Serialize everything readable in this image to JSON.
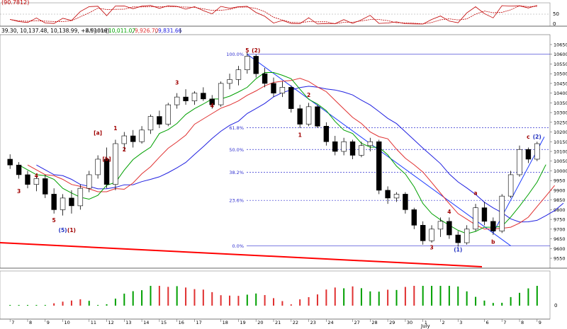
{
  "oscillator": {
    "header": "(90.7812)",
    "levels": [
      50,
      0
    ],
    "level_labels": [
      "50",
      "0"
    ]
  },
  "price_header": {
    "ohlc_text": "39.30, 10,137.48, 10,138.99, +8.91016)",
    "ma_label": "Alligator",
    "ma_values": [
      "10,011.07",
      "9,926.70",
      "9,831.66"
    ]
  },
  "volume": {
    "level_label": "0"
  },
  "colors": {
    "up_bar": "#ffffff",
    "down_bar": "#000000",
    "ma_green": "#00a000",
    "ma_red": "#e03030",
    "ma_blue": "#2020e0",
    "fib": "#3030d0",
    "trendline_red": "#ff0000",
    "trend_blue": "#1e3cff",
    "label_red": "#a00000",
    "label_blue": "#2030c0"
  },
  "chart_data": {
    "type": "candlestick",
    "ylim": [
      9510,
      10690
    ],
    "y_ticks": [
      9550,
      9600,
      9650,
      9700,
      9750,
      9800,
      9850,
      9900,
      9950,
      10000,
      10050,
      10100,
      10150,
      10200,
      10250,
      10300,
      10350,
      10400,
      10450,
      10500,
      10550,
      10600,
      10650
    ],
    "x_tick_labels": [
      "7",
      "8",
      "9",
      "10",
      "11",
      "12",
      "13",
      "14",
      "15",
      "16",
      "17",
      "18",
      "19",
      "20",
      "21",
      "22",
      "23",
      "24",
      "27",
      "28",
      "29",
      "30",
      "1",
      "2",
      "3",
      "6",
      "7",
      "8",
      "9"
    ],
    "x_month_label": "July",
    "fib_levels": [
      {
        "label": "100.0%",
        "value": 10600
      },
      {
        "label": "61.8%",
        "value": 10222
      },
      {
        "label": "50.0%",
        "value": 10110
      },
      {
        "label": "38.2%",
        "value": 9993
      },
      {
        "label": "23.6%",
        "value": 9848
      },
      {
        "label": "0.0%",
        "value": 9614
      }
    ],
    "wave_labels": [
      {
        "text": "3",
        "x": 1,
        "y": 9885
      },
      {
        "text": "4",
        "x": 3,
        "y": 9965
      },
      {
        "text": "5",
        "x": 5,
        "y": 9735
      },
      {
        "text": "(5)",
        "x": 6,
        "y": 9685
      },
      {
        "text": "(1)",
        "x": 7,
        "y": 9685
      },
      {
        "text": "[a]",
        "x": 10,
        "y": 10186
      },
      {
        "text": "[b]",
        "x": 11,
        "y": 10050
      },
      {
        "text": "1",
        "x": 12,
        "y": 10210
      },
      {
        "text": "2",
        "x": 13,
        "y": 10100
      },
      {
        "text": "3",
        "x": 19,
        "y": 10445
      },
      {
        "text": "4",
        "x": 23,
        "y": 10325
      },
      {
        "text": "5",
        "x": 27,
        "y": 10610
      },
      {
        "text": "(2)",
        "x": 28,
        "y": 10610
      },
      {
        "text": "2",
        "x": 34,
        "y": 10380
      },
      {
        "text": "1",
        "x": 33,
        "y": 10175
      },
      {
        "text": "3",
        "x": 48,
        "y": 9595
      },
      {
        "text": "4",
        "x": 50,
        "y": 9780
      },
      {
        "text": "(1)",
        "x": 51,
        "y": 9585
      },
      {
        "text": "a",
        "x": 53,
        "y": 9876
      },
      {
        "text": "b",
        "x": 55,
        "y": 9625
      },
      {
        "text": "c",
        "x": 59,
        "y": 10165
      },
      {
        "text": "(2)",
        "x": 60,
        "y": 10165
      }
    ],
    "candles": [
      {
        "o": 10060,
        "h": 10085,
        "l": 10010,
        "c": 10030
      },
      {
        "o": 10030,
        "h": 10045,
        "l": 9960,
        "c": 9980
      },
      {
        "o": 9980,
        "h": 10000,
        "l": 9910,
        "c": 9930
      },
      {
        "o": 9930,
        "h": 9975,
        "l": 9895,
        "c": 9960
      },
      {
        "o": 9960,
        "h": 9980,
        "l": 9860,
        "c": 9880
      },
      {
        "o": 9880,
        "h": 9910,
        "l": 9780,
        "c": 9800
      },
      {
        "o": 9800,
        "h": 9880,
        "l": 9770,
        "c": 9860
      },
      {
        "o": 9860,
        "h": 9900,
        "l": 9780,
        "c": 9820
      },
      {
        "o": 9820,
        "h": 9930,
        "l": 9800,
        "c": 9910
      },
      {
        "o": 9910,
        "h": 10000,
        "l": 9890,
        "c": 9980
      },
      {
        "o": 9980,
        "h": 10080,
        "l": 9960,
        "c": 10060
      },
      {
        "o": 10060,
        "h": 10120,
        "l": 9910,
        "c": 9930
      },
      {
        "o": 9930,
        "h": 10160,
        "l": 9900,
        "c": 10140
      },
      {
        "o": 10140,
        "h": 10200,
        "l": 10100,
        "c": 10180
      },
      {
        "o": 10180,
        "h": 10210,
        "l": 10120,
        "c": 10150
      },
      {
        "o": 10150,
        "h": 10230,
        "l": 10140,
        "c": 10210
      },
      {
        "o": 10210,
        "h": 10290,
        "l": 10190,
        "c": 10280
      },
      {
        "o": 10280,
        "h": 10310,
        "l": 10220,
        "c": 10240
      },
      {
        "o": 10240,
        "h": 10350,
        "l": 10230,
        "c": 10340
      },
      {
        "o": 10340,
        "h": 10400,
        "l": 10320,
        "c": 10380
      },
      {
        "o": 10380,
        "h": 10420,
        "l": 10340,
        "c": 10360
      },
      {
        "o": 10360,
        "h": 10410,
        "l": 10340,
        "c": 10400
      },
      {
        "o": 10400,
        "h": 10430,
        "l": 10360,
        "c": 10370
      },
      {
        "o": 10370,
        "h": 10390,
        "l": 10320,
        "c": 10340
      },
      {
        "o": 10340,
        "h": 10460,
        "l": 10330,
        "c": 10450
      },
      {
        "o": 10450,
        "h": 10500,
        "l": 10420,
        "c": 10470
      },
      {
        "o": 10470,
        "h": 10540,
        "l": 10440,
        "c": 10520
      },
      {
        "o": 10520,
        "h": 10610,
        "l": 10500,
        "c": 10590
      },
      {
        "o": 10590,
        "h": 10600,
        "l": 10480,
        "c": 10500
      },
      {
        "o": 10500,
        "h": 10530,
        "l": 10430,
        "c": 10450
      },
      {
        "o": 10450,
        "h": 10480,
        "l": 10380,
        "c": 10400
      },
      {
        "o": 10400,
        "h": 10460,
        "l": 10380,
        "c": 10430
      },
      {
        "o": 10430,
        "h": 10440,
        "l": 10300,
        "c": 10320
      },
      {
        "o": 10320,
        "h": 10340,
        "l": 10220,
        "c": 10240
      },
      {
        "o": 10240,
        "h": 10350,
        "l": 10230,
        "c": 10330
      },
      {
        "o": 10330,
        "h": 10340,
        "l": 10220,
        "c": 10230
      },
      {
        "o": 10230,
        "h": 10250,
        "l": 10130,
        "c": 10150
      },
      {
        "o": 10150,
        "h": 10180,
        "l": 10080,
        "c": 10100
      },
      {
        "o": 10100,
        "h": 10170,
        "l": 10080,
        "c": 10150
      },
      {
        "o": 10150,
        "h": 10160,
        "l": 10060,
        "c": 10080
      },
      {
        "o": 10080,
        "h": 10150,
        "l": 10070,
        "c": 10130
      },
      {
        "o": 10130,
        "h": 10170,
        "l": 10100,
        "c": 10150
      },
      {
        "o": 10150,
        "h": 10160,
        "l": 9880,
        "c": 9900
      },
      {
        "o": 9900,
        "h": 9920,
        "l": 9830,
        "c": 9860
      },
      {
        "o": 9860,
        "h": 9890,
        "l": 9840,
        "c": 9880
      },
      {
        "o": 9880,
        "h": 9890,
        "l": 9780,
        "c": 9800
      },
      {
        "o": 9800,
        "h": 9810,
        "l": 9700,
        "c": 9720
      },
      {
        "o": 9720,
        "h": 9740,
        "l": 9620,
        "c": 9640
      },
      {
        "o": 9640,
        "h": 9720,
        "l": 9630,
        "c": 9700
      },
      {
        "o": 9700,
        "h": 9760,
        "l": 9660,
        "c": 9740
      },
      {
        "o": 9740,
        "h": 9760,
        "l": 9650,
        "c": 9670
      },
      {
        "o": 9670,
        "h": 9690,
        "l": 9610,
        "c": 9630
      },
      {
        "o": 9630,
        "h": 9720,
        "l": 9620,
        "c": 9700
      },
      {
        "o": 9700,
        "h": 9830,
        "l": 9690,
        "c": 9810
      },
      {
        "o": 9810,
        "h": 9840,
        "l": 9720,
        "c": 9740
      },
      {
        "o": 9740,
        "h": 9760,
        "l": 9670,
        "c": 9690
      },
      {
        "o": 9690,
        "h": 9880,
        "l": 9680,
        "c": 9870
      },
      {
        "o": 9870,
        "h": 10000,
        "l": 9860,
        "c": 9980
      },
      {
        "o": 9980,
        "h": 10130,
        "l": 9970,
        "c": 10110
      },
      {
        "o": 10110,
        "h": 10120,
        "l": 10040,
        "c": 10060
      },
      {
        "o": 10060,
        "h": 10150,
        "l": 10050,
        "c": 10140
      }
    ]
  }
}
